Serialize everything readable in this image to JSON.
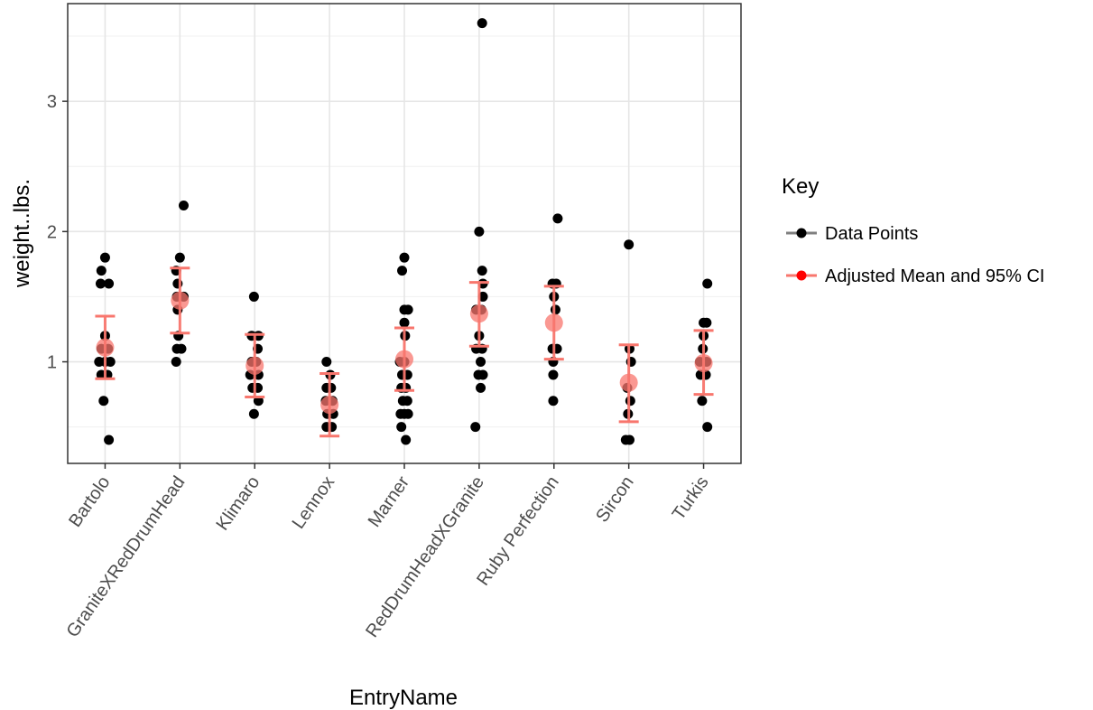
{
  "chart_data": {
    "type": "scatter",
    "title": "",
    "xlabel": "EntryName",
    "ylabel": "weight..lbs.",
    "ylim": [
      0.22,
      3.75
    ],
    "yticks": [
      1,
      2,
      3
    ],
    "yticks_minor": [
      0.5,
      1.5,
      2.5,
      3.5
    ],
    "grid": true,
    "categories": [
      "Bartolo",
      "GraniteXRedDrumHead",
      "Klimaro",
      "Lennox",
      "Marner",
      "RedDrumHeadXGranite",
      "Ruby Perfection",
      "Sircon",
      "Turkis"
    ],
    "series": [
      {
        "name": "Data Points",
        "color": "#000000",
        "points": [
          {
            "cat": 0,
            "dx": 0.0,
            "y": 1.8
          },
          {
            "cat": 0,
            "dx": -0.05,
            "y": 1.7
          },
          {
            "cat": 0,
            "dx": -0.06,
            "y": 1.6
          },
          {
            "cat": 0,
            "dx": 0.05,
            "y": 1.6
          },
          {
            "cat": 0,
            "dx": 0.0,
            "y": 1.2
          },
          {
            "cat": 0,
            "dx": -0.05,
            "y": 1.1
          },
          {
            "cat": 0,
            "dx": 0.04,
            "y": 1.1
          },
          {
            "cat": 0,
            "dx": -0.08,
            "y": 1.0
          },
          {
            "cat": 0,
            "dx": 0.0,
            "y": 1.0
          },
          {
            "cat": 0,
            "dx": 0.07,
            "y": 1.0
          },
          {
            "cat": 0,
            "dx": -0.05,
            "y": 0.9
          },
          {
            "cat": 0,
            "dx": 0.03,
            "y": 0.9
          },
          {
            "cat": 0,
            "dx": -0.02,
            "y": 0.7
          },
          {
            "cat": 0,
            "dx": 0.05,
            "y": 0.4
          },
          {
            "cat": 1,
            "dx": 0.05,
            "y": 2.2
          },
          {
            "cat": 1,
            "dx": 0.0,
            "y": 1.8
          },
          {
            "cat": 1,
            "dx": -0.05,
            "y": 1.7
          },
          {
            "cat": 1,
            "dx": -0.03,
            "y": 1.6
          },
          {
            "cat": 1,
            "dx": -0.04,
            "y": 1.5
          },
          {
            "cat": 1,
            "dx": 0.05,
            "y": 1.5
          },
          {
            "cat": 1,
            "dx": -0.03,
            "y": 1.4
          },
          {
            "cat": 1,
            "dx": -0.02,
            "y": 1.2
          },
          {
            "cat": 1,
            "dx": -0.04,
            "y": 1.1
          },
          {
            "cat": 1,
            "dx": 0.02,
            "y": 1.1
          },
          {
            "cat": 1,
            "dx": -0.05,
            "y": 1.0
          },
          {
            "cat": 2,
            "dx": -0.01,
            "y": 1.5
          },
          {
            "cat": 2,
            "dx": -0.04,
            "y": 1.2
          },
          {
            "cat": 2,
            "dx": 0.05,
            "y": 1.2
          },
          {
            "cat": 2,
            "dx": 0.04,
            "y": 1.1
          },
          {
            "cat": 2,
            "dx": -0.04,
            "y": 1.0
          },
          {
            "cat": 2,
            "dx": 0.02,
            "y": 1.0
          },
          {
            "cat": 2,
            "dx": -0.06,
            "y": 0.9
          },
          {
            "cat": 2,
            "dx": 0.05,
            "y": 0.9
          },
          {
            "cat": 2,
            "dx": -0.03,
            "y": 0.8
          },
          {
            "cat": 2,
            "dx": 0.04,
            "y": 0.8
          },
          {
            "cat": 2,
            "dx": 0.05,
            "y": 0.7
          },
          {
            "cat": 2,
            "dx": -0.01,
            "y": 0.6
          },
          {
            "cat": 3,
            "dx": -0.04,
            "y": 1.0
          },
          {
            "cat": 3,
            "dx": 0.01,
            "y": 0.9
          },
          {
            "cat": 3,
            "dx": -0.04,
            "y": 0.8
          },
          {
            "cat": 3,
            "dx": 0.02,
            "y": 0.8
          },
          {
            "cat": 3,
            "dx": -0.05,
            "y": 0.7
          },
          {
            "cat": 3,
            "dx": 0.04,
            "y": 0.7
          },
          {
            "cat": 3,
            "dx": -0.03,
            "y": 0.6
          },
          {
            "cat": 3,
            "dx": 0.05,
            "y": 0.6
          },
          {
            "cat": 3,
            "dx": -0.04,
            "y": 0.5
          },
          {
            "cat": 3,
            "dx": 0.03,
            "y": 0.5
          },
          {
            "cat": 4,
            "dx": 0.0,
            "y": 1.8
          },
          {
            "cat": 4,
            "dx": -0.03,
            "y": 1.7
          },
          {
            "cat": 4,
            "dx": 0.0,
            "y": 1.4
          },
          {
            "cat": 4,
            "dx": 0.05,
            "y": 1.4
          },
          {
            "cat": 4,
            "dx": 0.0,
            "y": 1.3
          },
          {
            "cat": 4,
            "dx": 0.01,
            "y": 1.2
          },
          {
            "cat": 4,
            "dx": -0.06,
            "y": 1.0
          },
          {
            "cat": 4,
            "dx": 0.0,
            "y": 1.0
          },
          {
            "cat": 4,
            "dx": -0.03,
            "y": 0.9
          },
          {
            "cat": 4,
            "dx": 0.04,
            "y": 0.9
          },
          {
            "cat": 4,
            "dx": -0.04,
            "y": 0.8
          },
          {
            "cat": 4,
            "dx": 0.02,
            "y": 0.8
          },
          {
            "cat": 4,
            "dx": -0.02,
            "y": 0.7
          },
          {
            "cat": 4,
            "dx": 0.04,
            "y": 0.7
          },
          {
            "cat": 4,
            "dx": -0.05,
            "y": 0.6
          },
          {
            "cat": 4,
            "dx": 0.0,
            "y": 0.6
          },
          {
            "cat": 4,
            "dx": 0.05,
            "y": 0.6
          },
          {
            "cat": 4,
            "dx": -0.04,
            "y": 0.5
          },
          {
            "cat": 4,
            "dx": 0.02,
            "y": 0.4
          },
          {
            "cat": 5,
            "dx": 0.04,
            "y": 3.6
          },
          {
            "cat": 5,
            "dx": 0.0,
            "y": 2.0
          },
          {
            "cat": 5,
            "dx": 0.04,
            "y": 1.7
          },
          {
            "cat": 5,
            "dx": 0.05,
            "y": 1.6
          },
          {
            "cat": 5,
            "dx": 0.05,
            "y": 1.5
          },
          {
            "cat": 5,
            "dx": -0.04,
            "y": 1.4
          },
          {
            "cat": 5,
            "dx": 0.03,
            "y": 1.4
          },
          {
            "cat": 5,
            "dx": 0.0,
            "y": 1.2
          },
          {
            "cat": 5,
            "dx": -0.04,
            "y": 1.1
          },
          {
            "cat": 5,
            "dx": 0.04,
            "y": 1.1
          },
          {
            "cat": 5,
            "dx": 0.02,
            "y": 1.0
          },
          {
            "cat": 5,
            "dx": -0.01,
            "y": 0.9
          },
          {
            "cat": 5,
            "dx": 0.05,
            "y": 0.9
          },
          {
            "cat": 5,
            "dx": 0.02,
            "y": 0.8
          },
          {
            "cat": 5,
            "dx": -0.05,
            "y": 0.5
          },
          {
            "cat": 6,
            "dx": 0.05,
            "y": 2.1
          },
          {
            "cat": 6,
            "dx": -0.02,
            "y": 1.6
          },
          {
            "cat": 6,
            "dx": 0.03,
            "y": 1.6
          },
          {
            "cat": 6,
            "dx": 0.0,
            "y": 1.5
          },
          {
            "cat": 6,
            "dx": 0.02,
            "y": 1.4
          },
          {
            "cat": 6,
            "dx": -0.02,
            "y": 1.1
          },
          {
            "cat": 6,
            "dx": 0.04,
            "y": 1.1
          },
          {
            "cat": 6,
            "dx": -0.01,
            "y": 1.0
          },
          {
            "cat": 6,
            "dx": -0.01,
            "y": 0.9
          },
          {
            "cat": 6,
            "dx": -0.01,
            "y": 0.7
          },
          {
            "cat": 7,
            "dx": 0.0,
            "y": 1.9
          },
          {
            "cat": 7,
            "dx": 0.01,
            "y": 1.1
          },
          {
            "cat": 7,
            "dx": 0.03,
            "y": 1.0
          },
          {
            "cat": 7,
            "dx": -0.02,
            "y": 0.8
          },
          {
            "cat": 7,
            "dx": 0.02,
            "y": 0.7
          },
          {
            "cat": 7,
            "dx": -0.01,
            "y": 0.6
          },
          {
            "cat": 7,
            "dx": -0.04,
            "y": 0.4
          },
          {
            "cat": 7,
            "dx": 0.01,
            "y": 0.4
          },
          {
            "cat": 8,
            "dx": 0.05,
            "y": 1.6
          },
          {
            "cat": 8,
            "dx": 0.0,
            "y": 1.3
          },
          {
            "cat": 8,
            "dx": 0.04,
            "y": 1.3
          },
          {
            "cat": 8,
            "dx": 0.0,
            "y": 1.2
          },
          {
            "cat": 8,
            "dx": -0.01,
            "y": 1.1
          },
          {
            "cat": 8,
            "dx": -0.05,
            "y": 1.0
          },
          {
            "cat": 8,
            "dx": 0.04,
            "y": 1.0
          },
          {
            "cat": 8,
            "dx": -0.04,
            "y": 0.9
          },
          {
            "cat": 8,
            "dx": 0.03,
            "y": 0.9
          },
          {
            "cat": 8,
            "dx": -0.02,
            "y": 0.7
          },
          {
            "cat": 8,
            "dx": 0.05,
            "y": 0.5
          }
        ]
      },
      {
        "name": "Adjusted Mean and 95% CI",
        "color": "#f8766d",
        "mean": [
          1.11,
          1.47,
          0.97,
          0.67,
          1.02,
          1.37,
          1.3,
          0.84,
          0.99
        ],
        "lower": [
          0.87,
          1.22,
          0.73,
          0.43,
          0.78,
          1.12,
          1.02,
          0.54,
          0.75
        ],
        "upper": [
          1.35,
          1.72,
          1.21,
          0.91,
          1.26,
          1.61,
          1.58,
          1.13,
          1.24
        ]
      }
    ],
    "legend": {
      "title": "Key",
      "position": "right",
      "entries": [
        "Data Points",
        "Adjusted Mean and 95% CI"
      ]
    }
  }
}
